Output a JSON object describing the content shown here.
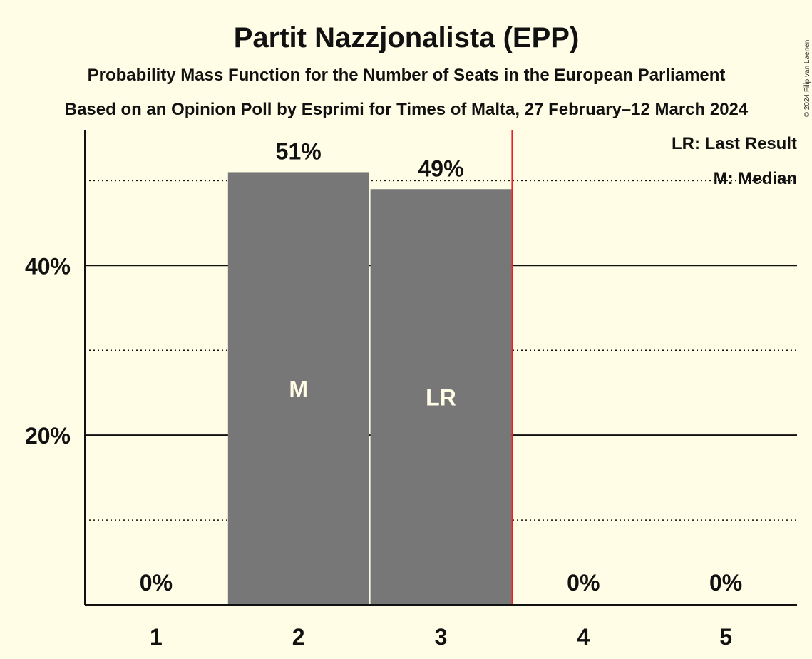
{
  "chart_data": {
    "type": "bar",
    "title": "Partit Nazzjonalista (EPP)",
    "subtitle": "Probability Mass Function for the Number of Seats in the European Parliament",
    "subtitle2": "Based on an Opinion Poll by Esprimi for Times of Malta, 27 February–12 March 2024",
    "copyright": "© 2024 Filip van Laenen",
    "categories": [
      "1",
      "2",
      "3",
      "4",
      "5"
    ],
    "values": [
      0,
      51,
      49,
      0,
      0
    ],
    "value_labels": [
      "0%",
      "51%",
      "49%",
      "0%",
      "0%"
    ],
    "ylim": [
      0,
      56
    ],
    "yticks_major": [
      20,
      40
    ],
    "ytick_labels": [
      "20%",
      "40%"
    ],
    "yticks_minor": [
      10,
      30,
      50
    ],
    "bar_color": "#777777",
    "grid_color": "#111111",
    "last_result_line_color": "#e8202a",
    "last_result_boundary_after_category": "3",
    "markers": [
      {
        "category": "2",
        "text": "M"
      },
      {
        "category": "3",
        "text": "LR"
      }
    ],
    "legend": [
      "LR: Last Result",
      "M: Median"
    ],
    "legend_position": "top-right"
  }
}
